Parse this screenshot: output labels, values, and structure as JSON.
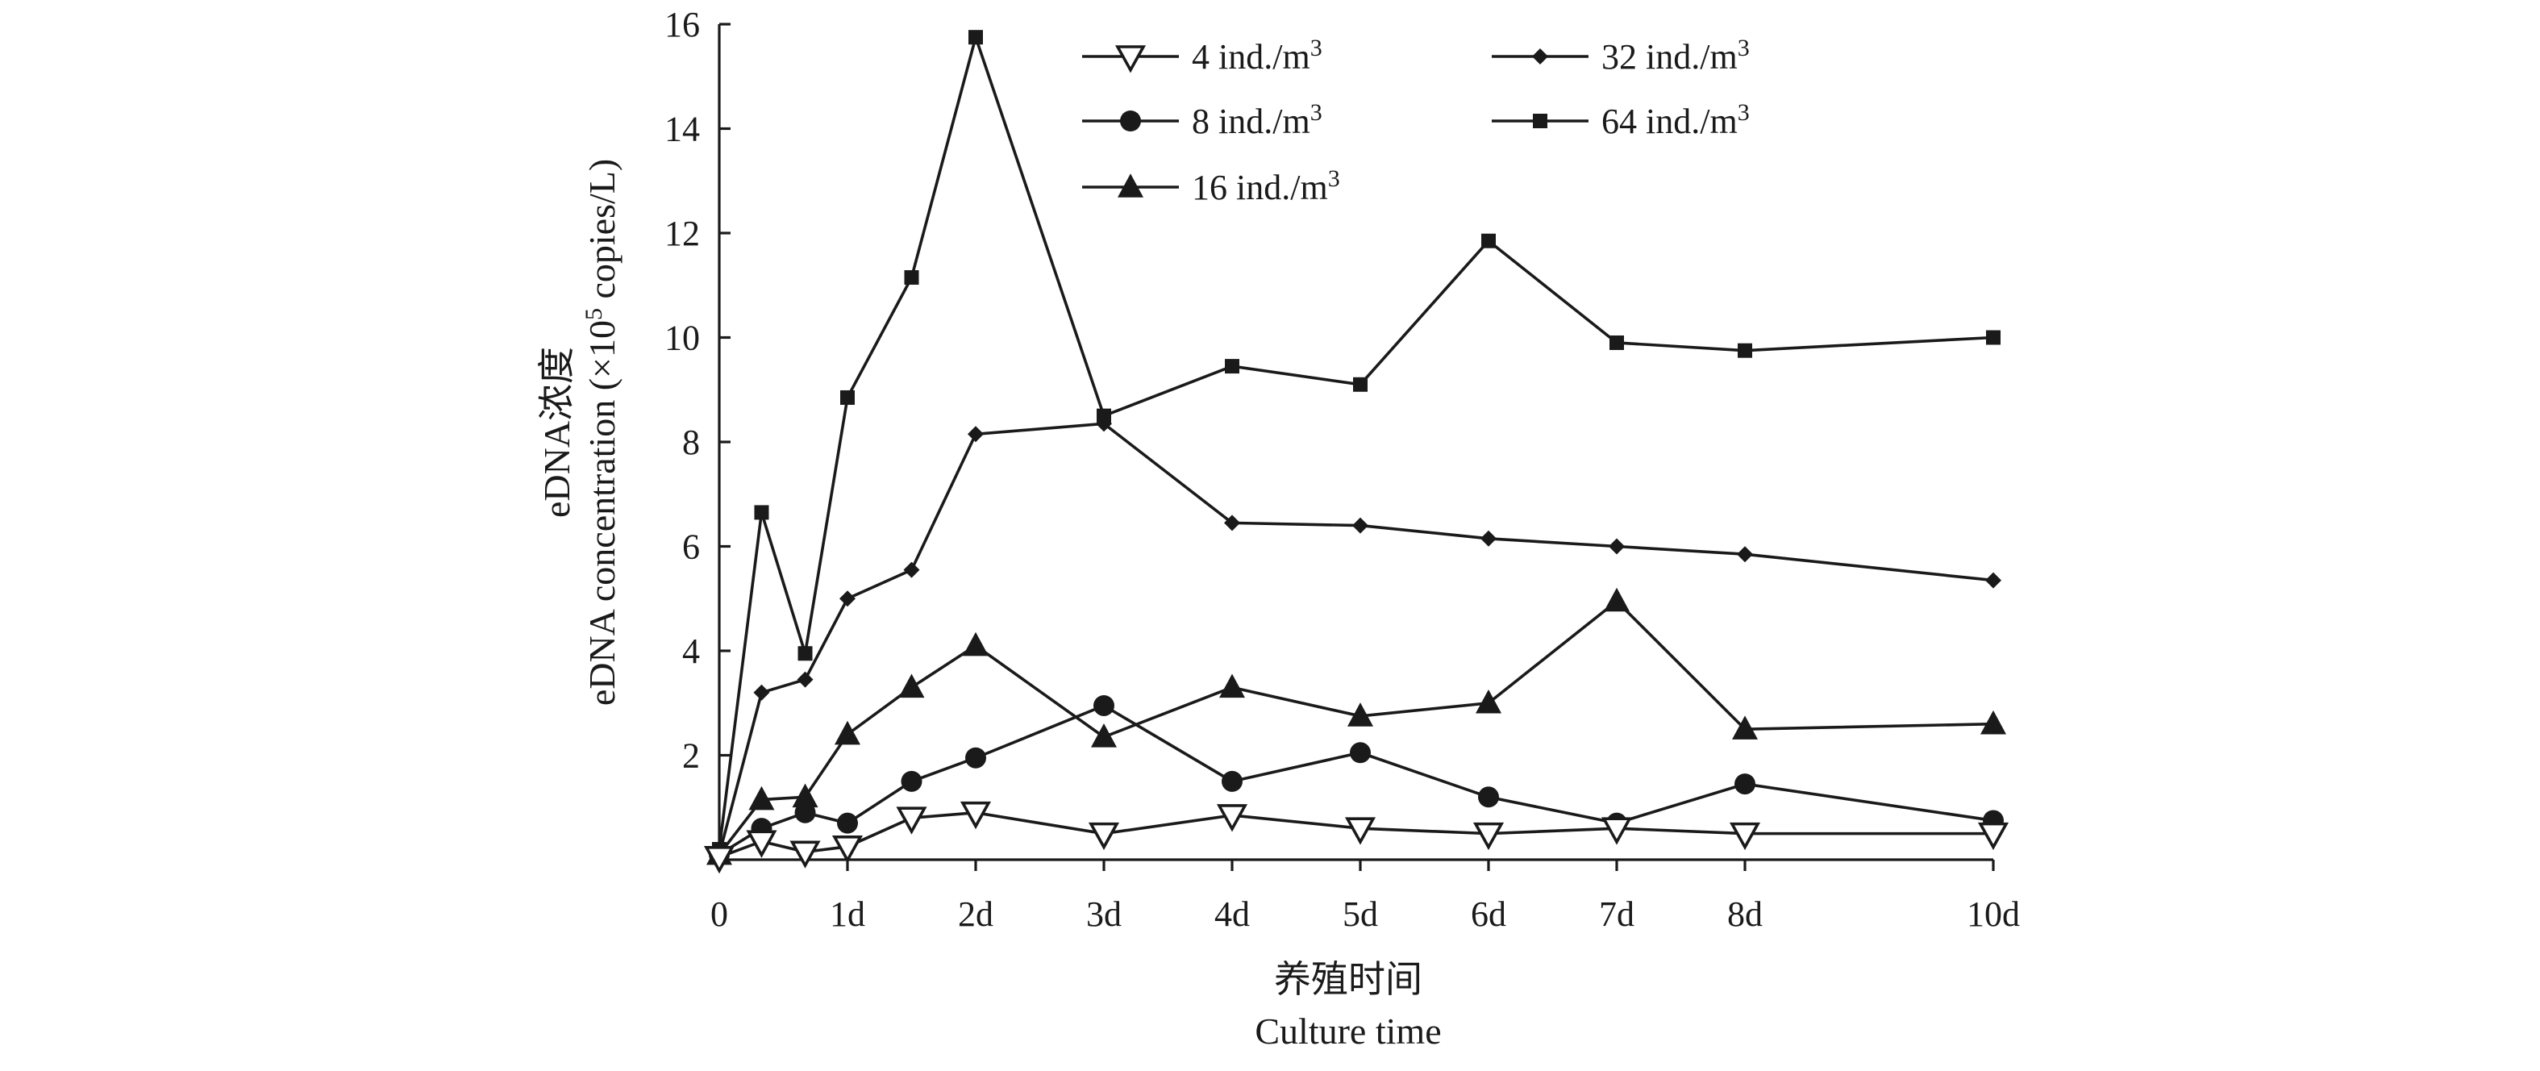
{
  "chart_data": {
    "type": "line",
    "xlabel_cn": "养殖时间",
    "xlabel_en": "Culture time",
    "ylabel_cn": "eDNA浓度",
    "ylabel_en_prefix": "eDNA concentration (×10",
    "ylabel_en_sup": "5",
    "ylabel_en_suffix": " copies/L)",
    "ylim": [
      0,
      16
    ],
    "y_ticks": [
      {
        "value": 2,
        "label": "2"
      },
      {
        "value": 4,
        "label": "4"
      },
      {
        "value": 6,
        "label": "6"
      },
      {
        "value": 8,
        "label": "8"
      },
      {
        "value": 10,
        "label": "10"
      },
      {
        "value": 12,
        "label": "12"
      },
      {
        "value": 14,
        "label": "14"
      },
      {
        "value": 16,
        "label": "16"
      }
    ],
    "x_ticks": [
      {
        "value": 0,
        "label": "0"
      },
      {
        "value": 1,
        "label": "1d"
      },
      {
        "value": 2,
        "label": "2d"
      },
      {
        "value": 3,
        "label": "3d"
      },
      {
        "value": 4,
        "label": "4d"
      },
      {
        "value": 5,
        "label": "5d"
      },
      {
        "value": 6,
        "label": "6d"
      },
      {
        "value": 7,
        "label": "7d"
      },
      {
        "value": 8,
        "label": "8d"
      },
      {
        "value": 10,
        "label": "10d"
      }
    ],
    "x_axis_note": "categorical axis; the 10d tick sits where 10 would fall on the same day-spacing is not preserved — it is placed at position 9.5 of the tick grid",
    "grid": false,
    "legend_position": "top-right",
    "x": [
      0,
      0.33,
      0.67,
      1,
      1.5,
      2,
      3,
      4,
      5,
      6,
      7,
      8,
      10
    ],
    "series": [
      {
        "name_prefix": "4 ind./m",
        "name_sup": "3",
        "marker": "triangle-down-open",
        "values": [
          0.05,
          0.35,
          0.15,
          0.25,
          0.8,
          0.9,
          0.5,
          0.85,
          0.6,
          0.5,
          0.6,
          0.5,
          0.5
        ]
      },
      {
        "name_prefix": "8 ind./m",
        "name_sup": "3",
        "marker": "circle",
        "values": [
          0.1,
          0.6,
          0.9,
          0.7,
          1.5,
          1.95,
          2.95,
          1.5,
          2.05,
          1.2,
          0.7,
          1.45,
          0.75
        ]
      },
      {
        "name_prefix": "16 ind./m",
        "name_sup": "3",
        "marker": "triangle-up",
        "values": [
          0.1,
          1.15,
          1.2,
          2.4,
          3.3,
          4.1,
          2.35,
          3.3,
          2.75,
          3.0,
          4.95,
          2.5,
          2.6
        ]
      },
      {
        "name_prefix": "32 ind./m",
        "name_sup": "3",
        "marker": "diamond",
        "values": [
          0.1,
          3.2,
          3.45,
          5.0,
          5.55,
          8.15,
          8.35,
          6.45,
          6.4,
          6.15,
          6.0,
          5.85,
          5.35
        ]
      },
      {
        "name_prefix": "64 ind./m",
        "name_sup": "3",
        "marker": "square",
        "values": [
          0.2,
          6.65,
          3.95,
          8.85,
          11.15,
          15.75,
          8.5,
          9.45,
          9.1,
          11.85,
          9.9,
          9.75,
          10.0
        ]
      }
    ]
  }
}
